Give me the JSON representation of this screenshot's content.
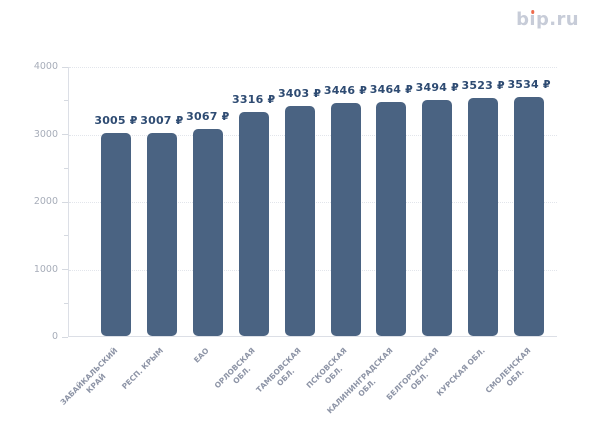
{
  "logo": {
    "parts": [
      "b",
      "ı",
      "p.ru"
    ],
    "color": "#c7ccd8",
    "dot_color": "#ed6a4c"
  },
  "chart_data": {
    "type": "bar",
    "title": "",
    "xlabel": "",
    "ylabel": "",
    "categories": [
      "ЗАБАЙКАЛЬСКИЙ КРАЙ",
      "РЕСП. КРЫМ",
      "ЕАО",
      "ОРЛОВСКАЯ ОБЛ.",
      "ТАМБОВСКАЯ ОБЛ.",
      "ПСКОВСКАЯ ОБЛ.",
      "КАЛИНИНГРАДСКАЯ ОБЛ.",
      "БЕЛГОРОДСКАЯ ОБЛ.",
      "КУРСКАЯ ОБЛ.",
      "СМОЛЕНСКАЯ ОБЛ."
    ],
    "category_lines": [
      [
        "ЗАБАЙКАЛЬСКИЙ",
        "КРАЙ"
      ],
      [
        "РЕСП. КРЫМ"
      ],
      [
        "ЕАО"
      ],
      [
        "ОРЛОВСКАЯ",
        "ОБЛ."
      ],
      [
        "ТАМБОВСКАЯ",
        "ОБЛ."
      ],
      [
        "ПСКОВСКАЯ",
        "ОБЛ."
      ],
      [
        "КАЛИНИНГРАДСКАЯ",
        "ОБЛ."
      ],
      [
        "БЕЛГОРОДСКАЯ",
        "ОБЛ."
      ],
      [
        "КУРСКАЯ ОБЛ."
      ],
      [
        "СМОЛЕНСКАЯ",
        "ОБЛ."
      ]
    ],
    "values": [
      3005,
      3007,
      3067,
      3316,
      3403,
      3446,
      3464,
      3494,
      3523,
      3534
    ],
    "value_suffix": "₽",
    "ylim": [
      0,
      4000
    ],
    "yticks": [
      0,
      1000,
      2000,
      3000,
      4000
    ],
    "minor_tick_step": 500,
    "grid": "horizontal dotted lines at major y ticks",
    "legend": "none",
    "xlabel_rotation": 45,
    "bar_color": "#4a6382",
    "value_label_color": "#2e4b72",
    "xtick_label_color": "#8d94a6",
    "ytick_label_color": "#a7adb9"
  }
}
